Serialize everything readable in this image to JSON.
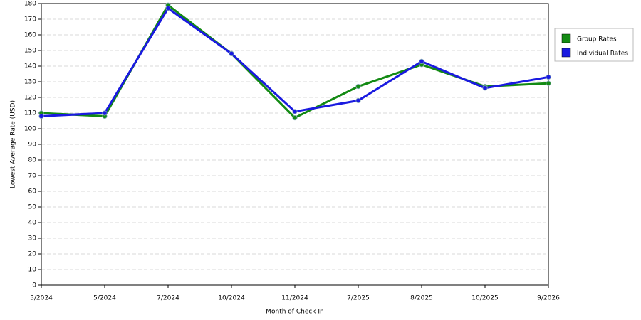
{
  "chart_data": {
    "type": "line",
    "x_label": "Month of Check In",
    "y_label": "Lowest Average Rate (USD)",
    "categories": [
      "3/2024",
      "5/2024",
      "7/2024",
      "10/2024",
      "11/2024",
      "7/2025",
      "8/2025",
      "10/2025",
      "9/2026"
    ],
    "series": [
      {
        "name": "Group Rates",
        "color": "#138a13",
        "values": [
          110,
          108,
          179,
          148,
          107,
          127,
          141,
          127,
          129
        ]
      },
      {
        "name": "Individual Rates",
        "color": "#1a1ae0",
        "values": [
          108,
          110,
          177,
          148,
          111,
          118,
          143,
          126,
          133
        ]
      }
    ],
    "ylim": [
      0,
      180
    ],
    "yticks": [
      0,
      10,
      20,
      30,
      40,
      50,
      60,
      70,
      80,
      90,
      100,
      110,
      120,
      130,
      140,
      150,
      160,
      170,
      180
    ],
    "grid": true,
    "legend": "right"
  }
}
